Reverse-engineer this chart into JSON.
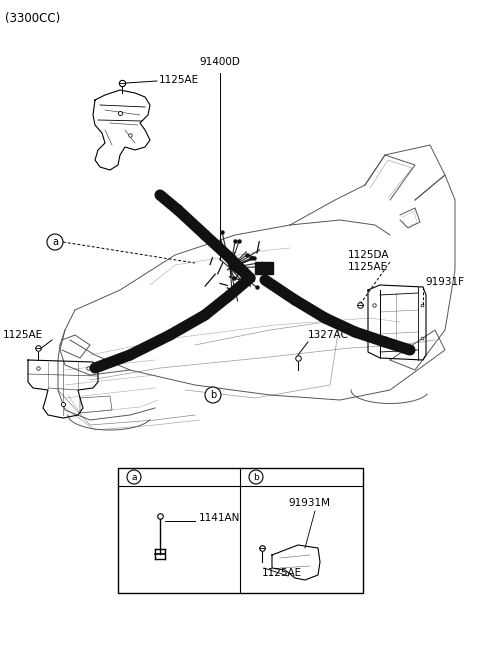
{
  "title": "(3300CC)",
  "bg_color": "#ffffff",
  "fig_width": 4.8,
  "fig_height": 6.56,
  "dpi": 100,
  "labels": {
    "top_bracket_label": "1125AE",
    "center_label": "91400D",
    "bottom_left_label": "1125AE",
    "right_label1": "1125DA",
    "right_label2": "1125AE",
    "right_label3": "91931F",
    "center_bottom_label": "1327AC",
    "sub_a_part": "1141AN",
    "sub_b_part1": "91931M",
    "sub_b_part2": "1125AE"
  },
  "car_color": "#888888",
  "line_color": "#000000",
  "text_color": "#000000",
  "thick_color": "#111111"
}
